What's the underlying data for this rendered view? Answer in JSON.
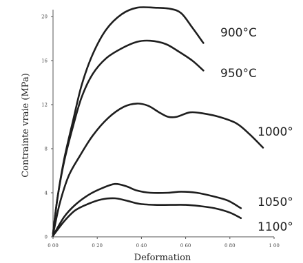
{
  "chart_data": {
    "type": "line",
    "title": "",
    "xlabel": "Deformation",
    "ylabel": "Contrainte vraie (MPa)",
    "xlim": [
      0,
      1.0
    ],
    "ylim": [
      0,
      20
    ],
    "x_ticks": [
      0.0,
      0.2,
      0.4,
      0.6,
      0.8,
      1.0
    ],
    "x_tick_labels": [
      "0 00",
      "0 20",
      "0 40",
      "0 60",
      "0 80",
      "1 00"
    ],
    "y_ticks": [
      0,
      4,
      8,
      12,
      16,
      20
    ],
    "y_tick_labels": [
      "0",
      "4",
      "8",
      "12",
      "16",
      "20"
    ],
    "grid": false,
    "legend": "none",
    "series": [
      {
        "name": "900°C",
        "points": [
          [
            0.0,
            0.3
          ],
          [
            0.02,
            3.5
          ],
          [
            0.05,
            7.0
          ],
          [
            0.09,
            10.5
          ],
          [
            0.13,
            13.8
          ],
          [
            0.18,
            16.6
          ],
          [
            0.24,
            18.8
          ],
          [
            0.31,
            20.2
          ],
          [
            0.38,
            20.8
          ],
          [
            0.46,
            20.8
          ],
          [
            0.53,
            20.7
          ],
          [
            0.58,
            20.3
          ],
          [
            0.63,
            19.0
          ],
          [
            0.68,
            17.6
          ]
        ]
      },
      {
        "name": "950°C",
        "points": [
          [
            0.0,
            0.3
          ],
          [
            0.02,
            3.5
          ],
          [
            0.05,
            6.8
          ],
          [
            0.09,
            10.0
          ],
          [
            0.13,
            12.7
          ],
          [
            0.18,
            14.8
          ],
          [
            0.24,
            16.2
          ],
          [
            0.31,
            17.1
          ],
          [
            0.38,
            17.7
          ],
          [
            0.44,
            17.8
          ],
          [
            0.51,
            17.5
          ],
          [
            0.57,
            16.8
          ],
          [
            0.63,
            16.0
          ],
          [
            0.68,
            15.1
          ]
        ]
      },
      {
        "name": "1000°",
        "points": [
          [
            0.0,
            0.2
          ],
          [
            0.03,
            3.0
          ],
          [
            0.07,
            5.5
          ],
          [
            0.12,
            7.3
          ],
          [
            0.18,
            9.2
          ],
          [
            0.25,
            10.8
          ],
          [
            0.32,
            11.8
          ],
          [
            0.38,
            12.1
          ],
          [
            0.43,
            11.9
          ],
          [
            0.48,
            11.3
          ],
          [
            0.52,
            10.9
          ],
          [
            0.56,
            10.9
          ],
          [
            0.62,
            11.3
          ],
          [
            0.68,
            11.2
          ],
          [
            0.75,
            10.9
          ],
          [
            0.83,
            10.3
          ],
          [
            0.89,
            9.3
          ],
          [
            0.95,
            8.1
          ]
        ]
      },
      {
        "name": "1050°",
        "points": [
          [
            0.0,
            0.1
          ],
          [
            0.05,
            1.8
          ],
          [
            0.1,
            2.9
          ],
          [
            0.16,
            3.8
          ],
          [
            0.22,
            4.4
          ],
          [
            0.28,
            4.8
          ],
          [
            0.33,
            4.6
          ],
          [
            0.38,
            4.2
          ],
          [
            0.44,
            4.0
          ],
          [
            0.52,
            4.0
          ],
          [
            0.58,
            4.1
          ],
          [
            0.65,
            4.0
          ],
          [
            0.72,
            3.7
          ],
          [
            0.79,
            3.3
          ],
          [
            0.85,
            2.6
          ]
        ]
      },
      {
        "name": "1100°",
        "points": [
          [
            0.0,
            0.1
          ],
          [
            0.05,
            1.4
          ],
          [
            0.1,
            2.4
          ],
          [
            0.16,
            3.0
          ],
          [
            0.22,
            3.4
          ],
          [
            0.28,
            3.5
          ],
          [
            0.33,
            3.3
          ],
          [
            0.39,
            3.0
          ],
          [
            0.46,
            2.9
          ],
          [
            0.53,
            2.9
          ],
          [
            0.6,
            2.9
          ],
          [
            0.66,
            2.8
          ],
          [
            0.73,
            2.6
          ],
          [
            0.8,
            2.2
          ],
          [
            0.85,
            1.7
          ]
        ]
      }
    ]
  }
}
